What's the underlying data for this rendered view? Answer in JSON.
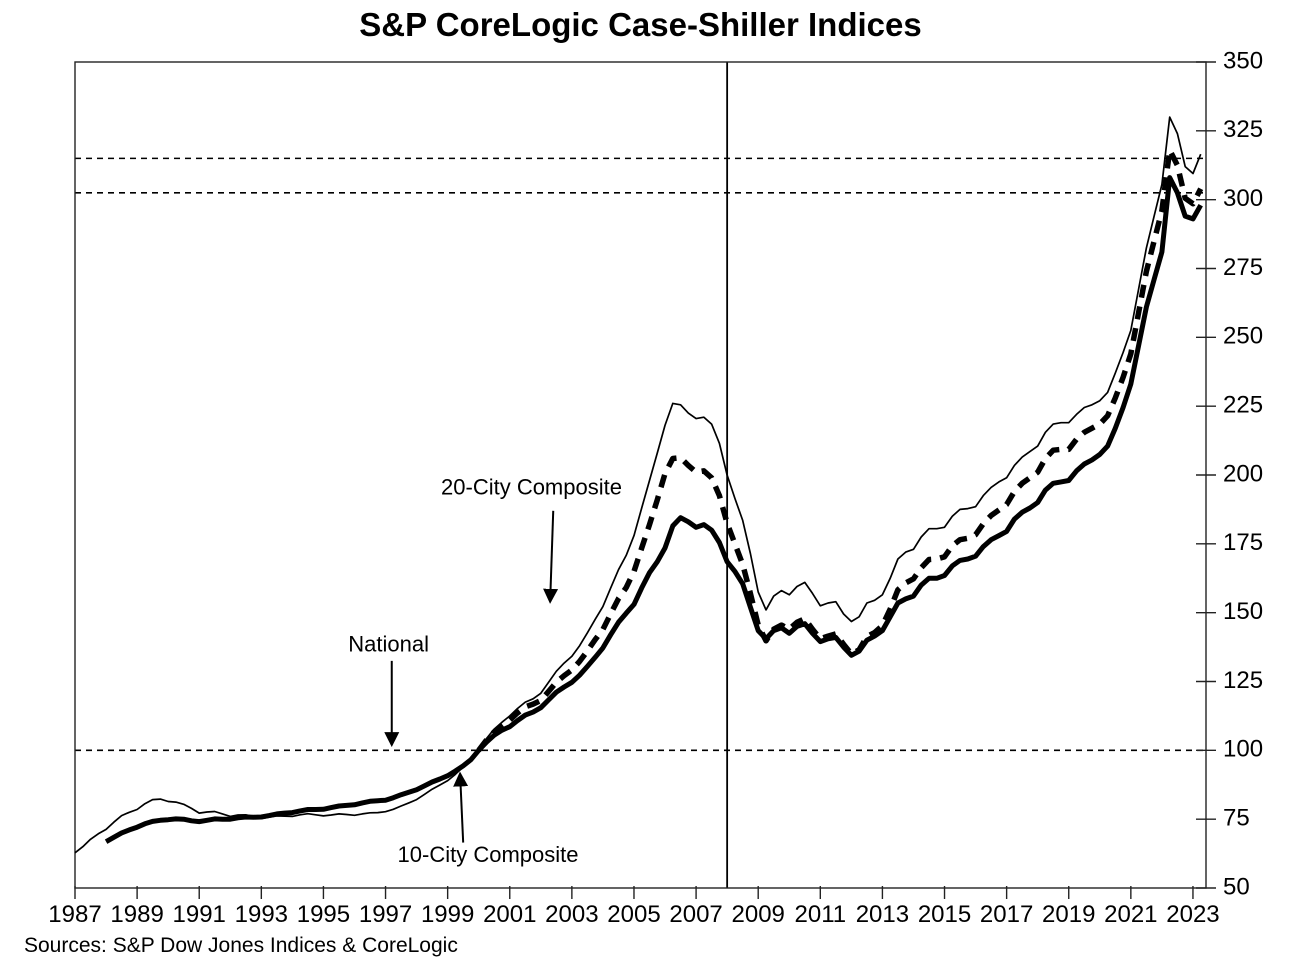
{
  "title": "S&P CoreLogic Case-Shiller Indices",
  "sources": "Sources: S&P Dow Jones Indices & CoreLogic",
  "chart_data": {
    "type": "line",
    "title": "S&P CoreLogic Case-Shiller Indices",
    "x_axis": {
      "range": [
        1987,
        2023.42
      ],
      "tick_years": [
        1987,
        1989,
        1991,
        1993,
        1995,
        1997,
        1999,
        2001,
        2003,
        2005,
        2007,
        2009,
        2011,
        2013,
        2015,
        2017,
        2019,
        2021,
        2023
      ]
    },
    "y_axis": {
      "range": [
        50,
        350
      ],
      "tick_step": 25,
      "ticks": [
        50,
        75,
        100,
        125,
        150,
        175,
        200,
        225,
        250,
        275,
        300,
        325,
        350
      ],
      "side": "right"
    },
    "grid": "off",
    "reference_lines": {
      "horizontal_dashed_values": [
        100,
        302.5,
        315
      ],
      "vertical_line_year": 2008
    },
    "series": [
      {
        "name": "10-City Composite",
        "line_style": "thin-solid",
        "start": 1987.0,
        "step": 0.25,
        "values": [
          62.8,
          65.0,
          67.7,
          69.7,
          71.3,
          73.9,
          76.3,
          77.5,
          78.5,
          80.6,
          82.1,
          82.3,
          81.4,
          81.2,
          80.4,
          78.9,
          77.2,
          77.6,
          77.8,
          76.9,
          76.0,
          76.5,
          76.6,
          76.0,
          75.2,
          75.7,
          76.2,
          76.1,
          76.0,
          76.6,
          77.0,
          76.6,
          76.2,
          76.5,
          76.9,
          76.7,
          76.4,
          76.9,
          77.3,
          77.4,
          77.7,
          78.6,
          79.8,
          80.9,
          82.1,
          84.0,
          85.9,
          87.4,
          89.0,
          91.3,
          94.0,
          96.9,
          100.0,
          104.3,
          107.7,
          110.2,
          112.5,
          115.2,
          117.5,
          118.7,
          120.7,
          124.7,
          128.7,
          131.7,
          134.2,
          138.0,
          142.7,
          147.6,
          152.2,
          159.0,
          165.6,
          170.8,
          178.0,
          188.0,
          198.0,
          208.0,
          218.0,
          226.0,
          225.5,
          222.5,
          220.5,
          221.0,
          218.5,
          211.5,
          200.0,
          191.5,
          183.5,
          171.5,
          157.5,
          151.0,
          156.0,
          158.0,
          156.5,
          159.5,
          161.0,
          157.0,
          152.5,
          153.5,
          154.0,
          149.5,
          146.8,
          148.5,
          153.5,
          154.5,
          156.5,
          162.5,
          169.5,
          172.0,
          173.0,
          177.5,
          180.5,
          180.5,
          181.0,
          185.0,
          187.5,
          187.8,
          188.5,
          192.5,
          195.5,
          197.5,
          199.0,
          203.5,
          206.5,
          208.5,
          210.5,
          215.5,
          218.5,
          219.0,
          219.0,
          222.0,
          224.5,
          225.5,
          227.0,
          230.0,
          237.0,
          244.5,
          252.5,
          267.5,
          282.5,
          294.0,
          305.5,
          330.0,
          324.0,
          312.0,
          309.5,
          316.5
        ]
      },
      {
        "name": "National",
        "line_style": "thick-solid",
        "start": 1988.0,
        "step": 0.25,
        "values": [
          66.8,
          68.4,
          70.0,
          71.1,
          72.1,
          73.3,
          74.2,
          74.6,
          74.8,
          75.1,
          75.0,
          74.4,
          74.1,
          74.6,
          75.1,
          75.0,
          75.0,
          75.5,
          75.8,
          75.7,
          75.8,
          76.3,
          76.9,
          77.2,
          77.4,
          78.0,
          78.5,
          78.5,
          78.6,
          79.2,
          79.8,
          80.0,
          80.2,
          80.9,
          81.5,
          81.7,
          81.9,
          82.8,
          83.9,
          84.8,
          85.7,
          87.1,
          88.5,
          89.6,
          90.8,
          92.5,
          94.4,
          96.6,
          100.0,
          103.0,
          105.5,
          107.3,
          108.6,
          110.8,
          112.8,
          113.9,
          115.5,
          118.3,
          121.1,
          123.0,
          124.7,
          127.3,
          130.5,
          133.8,
          137.2,
          142.0,
          146.5,
          149.8,
          153.0,
          159.0,
          164.5,
          168.5,
          173.5,
          181.5,
          184.5,
          183.0,
          181.0,
          182.0,
          180.0,
          175.5,
          168.5,
          165.0,
          160.5,
          152.0,
          143.5,
          140.5,
          143.5,
          144.5,
          142.5,
          145.0,
          146.0,
          142.5,
          139.5,
          140.5,
          141.0,
          137.5,
          134.5,
          136.0,
          140.0,
          141.5,
          143.5,
          148.5,
          153.5,
          155.0,
          156.0,
          160.0,
          162.5,
          162.5,
          163.5,
          167.0,
          169.0,
          169.5,
          170.5,
          174.0,
          176.5,
          178.0,
          179.5,
          184.0,
          186.5,
          188.0,
          190.0,
          194.5,
          197.0,
          197.5,
          198.0,
          201.5,
          204.0,
          205.5,
          207.5,
          210.5,
          217.0,
          224.5,
          233.0,
          247.0,
          261.0,
          271.0,
          281.0,
          308.0,
          302.5,
          294.0,
          293.0,
          298.0
        ]
      },
      {
        "name": "20-City Composite",
        "line_style": "thick-dashed",
        "start": 2000.0,
        "step": 0.25,
        "values": [
          100.0,
          103.7,
          106.7,
          108.9,
          111.0,
          113.6,
          115.8,
          116.8,
          118.1,
          121.4,
          124.7,
          127.1,
          129.2,
          132.3,
          136.1,
          140.2,
          143.9,
          149.6,
          155.1,
          159.1,
          165.0,
          173.5,
          182.0,
          191.0,
          200.5,
          206.0,
          206.3,
          203.5,
          201.0,
          201.5,
          199.0,
          192.5,
          182.5,
          175.0,
          167.5,
          157.0,
          145.5,
          139.8,
          144.0,
          145.5,
          144.0,
          146.5,
          147.8,
          144.0,
          140.5,
          141.5,
          142.3,
          138.5,
          135.0,
          136.5,
          141.3,
          142.8,
          145.3,
          151.3,
          158.3,
          160.8,
          162.3,
          166.3,
          169.3,
          169.5,
          170.3,
          174.3,
          176.5,
          177.0,
          178.3,
          182.3,
          185.3,
          187.3,
          189.3,
          194.0,
          197.0,
          199.0,
          201.0,
          206.0,
          209.0,
          209.3,
          209.3,
          213.0,
          215.5,
          217.0,
          218.5,
          221.5,
          228.0,
          235.5,
          244.0,
          259.0,
          274.0,
          285.0,
          296.0,
          318.0,
          312.5,
          300.5,
          298.5,
          304.0
        ]
      }
    ],
    "annotations": [
      {
        "text": "20-City Composite",
        "text_at": [
          2001.7,
          195
        ],
        "arrow_from": [
          2002.4,
          187
        ],
        "arrow_to": [
          2002.3,
          154
        ]
      },
      {
        "text": "National",
        "text_at": [
          1997.1,
          138
        ],
        "arrow_from": [
          1997.2,
          132.5
        ],
        "arrow_to": [
          1997.2,
          102
        ]
      },
      {
        "text": "10-City Composite",
        "text_at": [
          2000.3,
          61.5
        ],
        "arrow_from": [
          1999.5,
          66.5
        ],
        "arrow_to": [
          1999.4,
          91.5
        ]
      }
    ],
    "colors": {
      "line": "#000000",
      "axis": "#222222",
      "background": "#ffffff"
    }
  }
}
